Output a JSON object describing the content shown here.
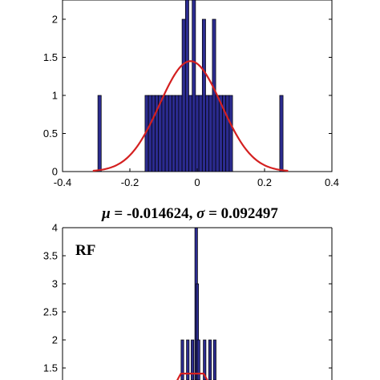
{
  "chart_data": [
    {
      "type": "bar",
      "title": "",
      "panel_label": "",
      "bar_width": 0.01,
      "bar_color": "#2b2b8f",
      "bar_edge_color": "#000000",
      "fit_curve_color": "#d42020",
      "bins": [
        {
          "x": -0.29,
          "count": 1
        },
        {
          "x": -0.15,
          "count": 1
        },
        {
          "x": -0.14,
          "count": 1
        },
        {
          "x": -0.13,
          "count": 1
        },
        {
          "x": -0.12,
          "count": 1
        },
        {
          "x": -0.11,
          "count": 1
        },
        {
          "x": -0.1,
          "count": 1
        },
        {
          "x": -0.09,
          "count": 1
        },
        {
          "x": -0.08,
          "count": 1
        },
        {
          "x": -0.07,
          "count": 1
        },
        {
          "x": -0.06,
          "count": 1
        },
        {
          "x": -0.05,
          "count": 1
        },
        {
          "x": -0.04,
          "count": 2
        },
        {
          "x": -0.03,
          "count": 2.4
        },
        {
          "x": -0.02,
          "count": 1
        },
        {
          "x": -0.01,
          "count": 2.4
        },
        {
          "x": 0.0,
          "count": 1
        },
        {
          "x": 0.01,
          "count": 1
        },
        {
          "x": 0.02,
          "count": 2
        },
        {
          "x": 0.03,
          "count": 1
        },
        {
          "x": 0.04,
          "count": 1
        },
        {
          "x": 0.05,
          "count": 2
        },
        {
          "x": 0.06,
          "count": 1
        },
        {
          "x": 0.07,
          "count": 1
        },
        {
          "x": 0.08,
          "count": 1
        },
        {
          "x": 0.09,
          "count": 1
        },
        {
          "x": 0.1,
          "count": 1
        },
        {
          "x": 0.25,
          "count": 1
        }
      ],
      "fit": {
        "mu": -0.02,
        "sigma": 0.092,
        "peak": 1.45
      },
      "xlim": [
        -0.4,
        0.4
      ],
      "ylim": [
        0,
        2.4
      ],
      "xticks": [
        -0.4,
        -0.2,
        0,
        0.2,
        0.4
      ],
      "xtick_labels": [
        "-0.4",
        "-0.2",
        "0",
        "0.2",
        "0.4"
      ],
      "yticks": [
        0,
        0.5,
        1,
        1.5,
        2
      ],
      "ytick_labels": [
        "0",
        "0.5",
        "1",
        "1.5",
        "2"
      ]
    },
    {
      "type": "bar",
      "title": "μ = -0.014624, σ = 0.092497",
      "title_parts": {
        "mu_symbol": "μ",
        "mu_value": " = -0.014624, ",
        "sigma_symbol": "σ",
        "sigma_value": " = 0.092497"
      },
      "panel_label": "RF",
      "bar_width": 0.008,
      "bar_color": "#2b2b8f",
      "bar_edge_color": "#000000",
      "fit_curve_color": "#d42020",
      "bins": [
        {
          "x": -0.044,
          "count": 2
        },
        {
          "x": -0.028,
          "count": 2
        },
        {
          "x": -0.014,
          "count": 2
        },
        {
          "x": -0.003,
          "count": 4
        },
        {
          "x": 0.0,
          "count": 3
        },
        {
          "x": 0.004,
          "count": 2
        },
        {
          "x": 0.022,
          "count": 2
        },
        {
          "x": 0.038,
          "count": 2
        },
        {
          "x": 0.052,
          "count": 2
        }
      ],
      "fit": {
        "mu": -0.014624,
        "sigma": 0.092497,
        "peak": 1.55
      },
      "xlim": [
        -0.4,
        0.4
      ],
      "ylim": [
        1.3,
        4
      ],
      "yticks": [
        1.5,
        2,
        2.5,
        3,
        3.5,
        4
      ],
      "ytick_labels": [
        "1.5",
        "2",
        "2.5",
        "3",
        "3.5",
        "4"
      ]
    }
  ]
}
